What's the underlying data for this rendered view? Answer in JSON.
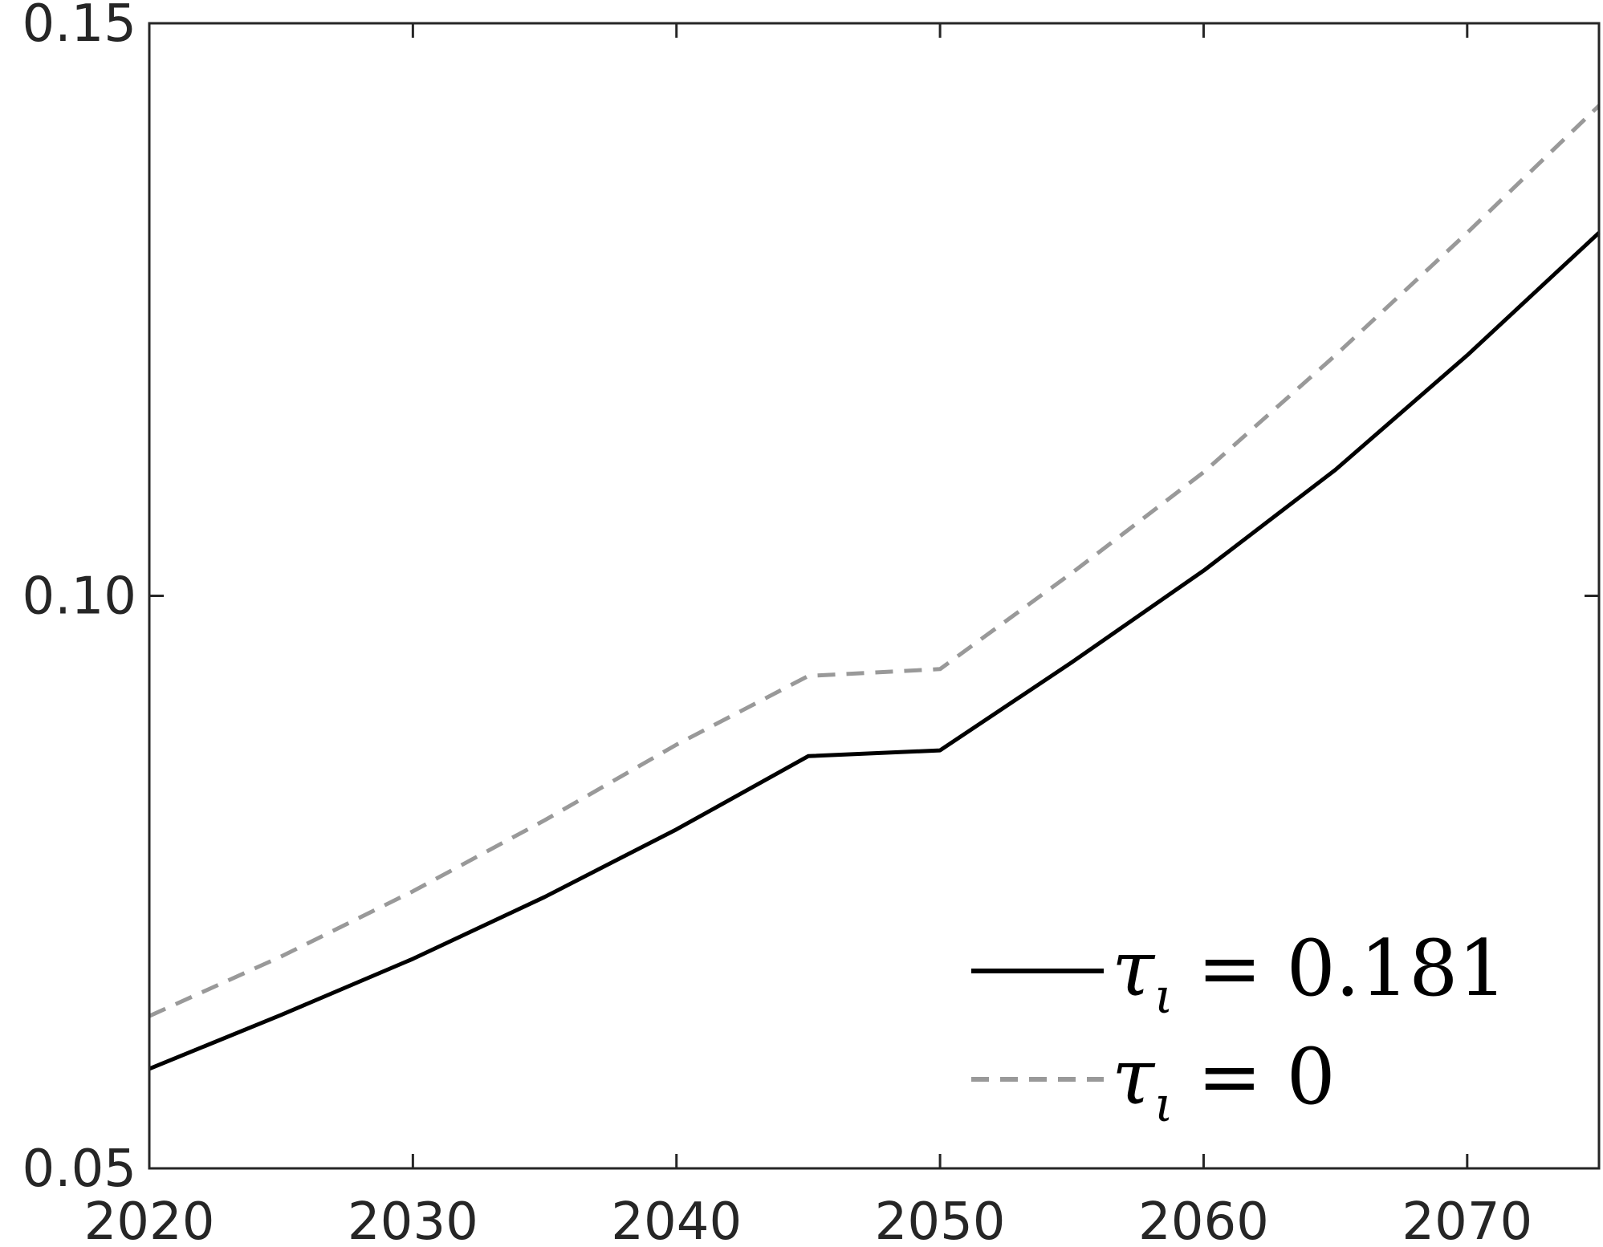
{
  "chart_data": {
    "type": "line",
    "title": "",
    "xlabel": "",
    "ylabel": "",
    "xlim": [
      2020,
      2075
    ],
    "ylim": [
      0.05,
      0.15
    ],
    "x_ticks": [
      "2020",
      "2030",
      "2040",
      "2050",
      "2060",
      "2070"
    ],
    "y_ticks": [
      "0.05",
      "0.10",
      "0.15"
    ],
    "grid": false,
    "legend_position": "bottom-right",
    "x": [
      2020,
      2025,
      2030,
      2035,
      2040,
      2045,
      2050,
      2055,
      2060,
      2065,
      2070,
      2075
    ],
    "series": [
      {
        "name": "τι = 0.181",
        "legend_symbol": "τ",
        "legend_subscript": "ι",
        "legend_value": "= 0.181",
        "color": "#000000",
        "dash": "solid",
        "values": [
          0.0587,
          0.0634,
          0.0683,
          0.0737,
          0.0796,
          0.086,
          0.0865,
          0.0942,
          0.1022,
          0.111,
          0.121,
          0.1317
        ]
      },
      {
        "name": "τι = 0",
        "legend_symbol": "τ",
        "legend_subscript": "ι",
        "legend_value": "= 0",
        "color": "#999999",
        "dash": "dashed",
        "values": [
          0.0633,
          0.0685,
          0.0742,
          0.0804,
          0.087,
          0.093,
          0.0936,
          0.102,
          0.1108,
          0.121,
          0.1317,
          0.1428
        ]
      }
    ]
  }
}
